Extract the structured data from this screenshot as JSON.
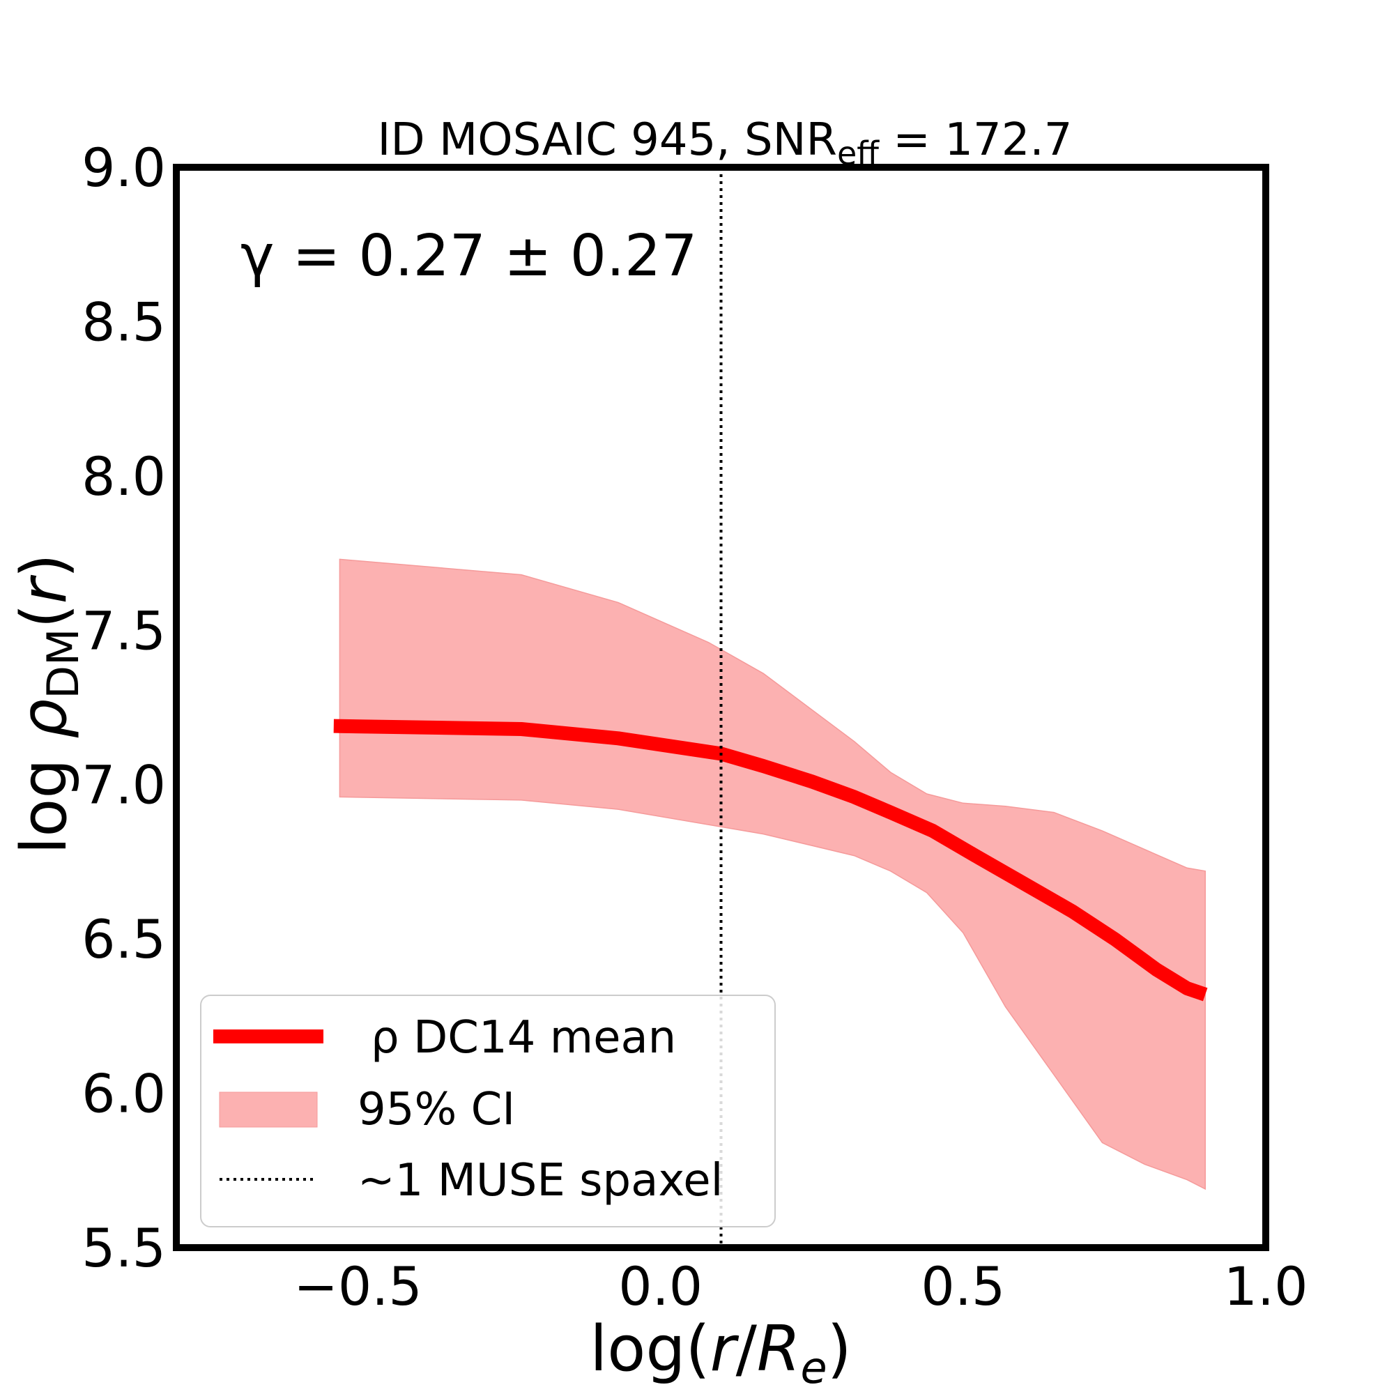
{
  "chart_data": {
    "type": "line",
    "title": {
      "prefix": "ID MOSAIC 945, SNR",
      "sub": "eff",
      "suffix": " = 172.7"
    },
    "xlabel": {
      "pre": "log(",
      "r": "r",
      "slash": "/",
      "R": "R",
      "sub": "e",
      "post": ")"
    },
    "ylabel": {
      "log": "log",
      "rho": "ρ",
      "sub": "DM",
      "open": "(",
      "r": "r",
      "close": ")"
    },
    "annotation": "γ = 0.27 ± 0.27",
    "xlim": [
      -0.8,
      1.0
    ],
    "ylim": [
      5.5,
      9.0
    ],
    "x_ticks": [
      -0.5,
      0.0,
      0.5,
      1.0
    ],
    "x_tick_labels": [
      "−0.5",
      "0.0",
      "0.5",
      "1.0"
    ],
    "y_ticks": [
      5.5,
      6.0,
      6.5,
      7.0,
      7.5,
      8.0,
      8.5,
      9.0
    ],
    "y_tick_labels": [
      "5.5",
      "6.0",
      "6.5",
      "7.0",
      "7.5",
      "8.0",
      "8.5",
      "9.0"
    ],
    "vline_x": 0.1,
    "series": [
      {
        "name": "ρ DC14 mean",
        "color": "#ff0000",
        "x": [
          -0.54,
          -0.23,
          -0.07,
          0.1,
          0.17,
          0.25,
          0.32,
          0.38,
          0.45,
          0.52,
          0.6,
          0.68,
          0.75,
          0.82,
          0.87,
          0.9
        ],
        "y": [
          7.19,
          7.18,
          7.15,
          7.1,
          7.06,
          7.01,
          6.96,
          6.91,
          6.85,
          6.77,
          6.68,
          6.59,
          6.5,
          6.4,
          6.34,
          6.32
        ]
      }
    ],
    "ci_band": {
      "name": "95% CI",
      "color": "#fcb1b1",
      "x": [
        -0.53,
        -0.23,
        -0.07,
        0.08,
        0.17,
        0.32,
        0.38,
        0.44,
        0.5,
        0.57,
        0.65,
        0.73,
        0.8,
        0.87,
        0.9
      ],
      "upper": [
        7.73,
        7.68,
        7.59,
        7.46,
        7.36,
        7.14,
        7.04,
        6.97,
        6.94,
        6.93,
        6.91,
        6.85,
        6.79,
        6.73,
        6.72
      ],
      "lower": [
        6.96,
        6.95,
        6.92,
        6.87,
        6.84,
        6.77,
        6.72,
        6.65,
        6.52,
        6.28,
        6.06,
        5.84,
        5.77,
        5.72,
        5.69
      ]
    },
    "legend": {
      "placement": "lower-left",
      "entries": [
        "ρ DC14 mean",
        "95% CI",
        "~1 MUSE spaxel"
      ]
    }
  }
}
